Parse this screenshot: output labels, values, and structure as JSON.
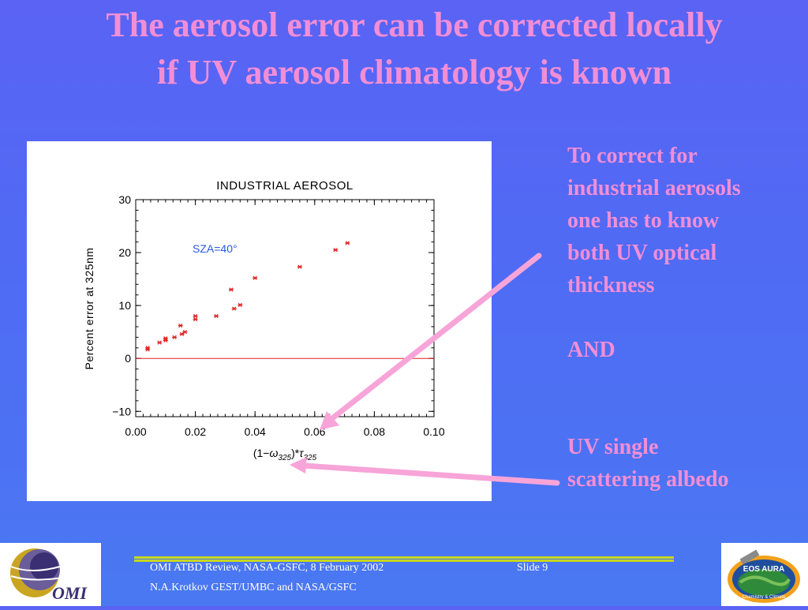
{
  "slide": {
    "title_lines": [
      "The aerosol error can be  corrected locally",
      "if UV aerosol climatology is known"
    ],
    "side_text": {
      "para1_lines": [
        "To correct for",
        "industrial aerosols",
        "one has to know",
        "both UV optical",
        "thickness"
      ],
      "and": "AND",
      "para2_lines": [
        "UV single",
        "scattering albedo"
      ]
    },
    "footer": {
      "line1": "OMI ATBD Review, NASA-GSFC, 8 February 2002",
      "slide_label": "Slide 9",
      "line2": "N.A.Krotkov GEST/UMBC and NASA/GSFC"
    },
    "logos": {
      "left_text": "OMI",
      "right_text": "EOS AURA",
      "right_subtext": "Chemistry & Climate"
    },
    "colors": {
      "title": "#f28ed6",
      "arrow": "#f7a4d8",
      "marker": "#e02020",
      "zero_line": "#e02020",
      "sza_label": "#2a57e8",
      "footer_rule": "#c8d820"
    }
  },
  "chart_data": {
    "type": "scatter",
    "title": "INDUSTRIAL  AEROSOL",
    "ylabel": "Percent error at 325nm",
    "xlabel": "(1−ω325)*τ325",
    "xlabel_parts": {
      "open": "(1−",
      "omega": "ω",
      "omega_sub": "325",
      "close": ")*",
      "tau": "τ",
      "tau_sub": "325"
    },
    "annotation": "SZA=40°",
    "xlim": [
      0.0,
      0.1
    ],
    "ylim": [
      -11,
      30
    ],
    "xticks": [
      "0.00",
      "0.02",
      "0.04",
      "0.06",
      "0.08",
      "0.10"
    ],
    "yticks": [
      "−10",
      "0",
      "10",
      "20",
      "30"
    ],
    "marker": "*",
    "reference_line_y": 0,
    "points": [
      [
        0.004,
        1.7
      ],
      [
        0.004,
        2.0
      ],
      [
        0.008,
        3.0
      ],
      [
        0.01,
        3.4
      ],
      [
        0.01,
        3.8
      ],
      [
        0.013,
        4.0
      ],
      [
        0.015,
        6.2
      ],
      [
        0.0155,
        4.6
      ],
      [
        0.0165,
        5.0
      ],
      [
        0.02,
        7.4
      ],
      [
        0.02,
        8.0
      ],
      [
        0.027,
        8.0
      ],
      [
        0.032,
        13.0
      ],
      [
        0.033,
        9.4
      ],
      [
        0.035,
        10.1
      ],
      [
        0.04,
        15.2
      ],
      [
        0.055,
        17.3
      ],
      [
        0.067,
        20.5
      ],
      [
        0.071,
        21.8
      ]
    ]
  }
}
